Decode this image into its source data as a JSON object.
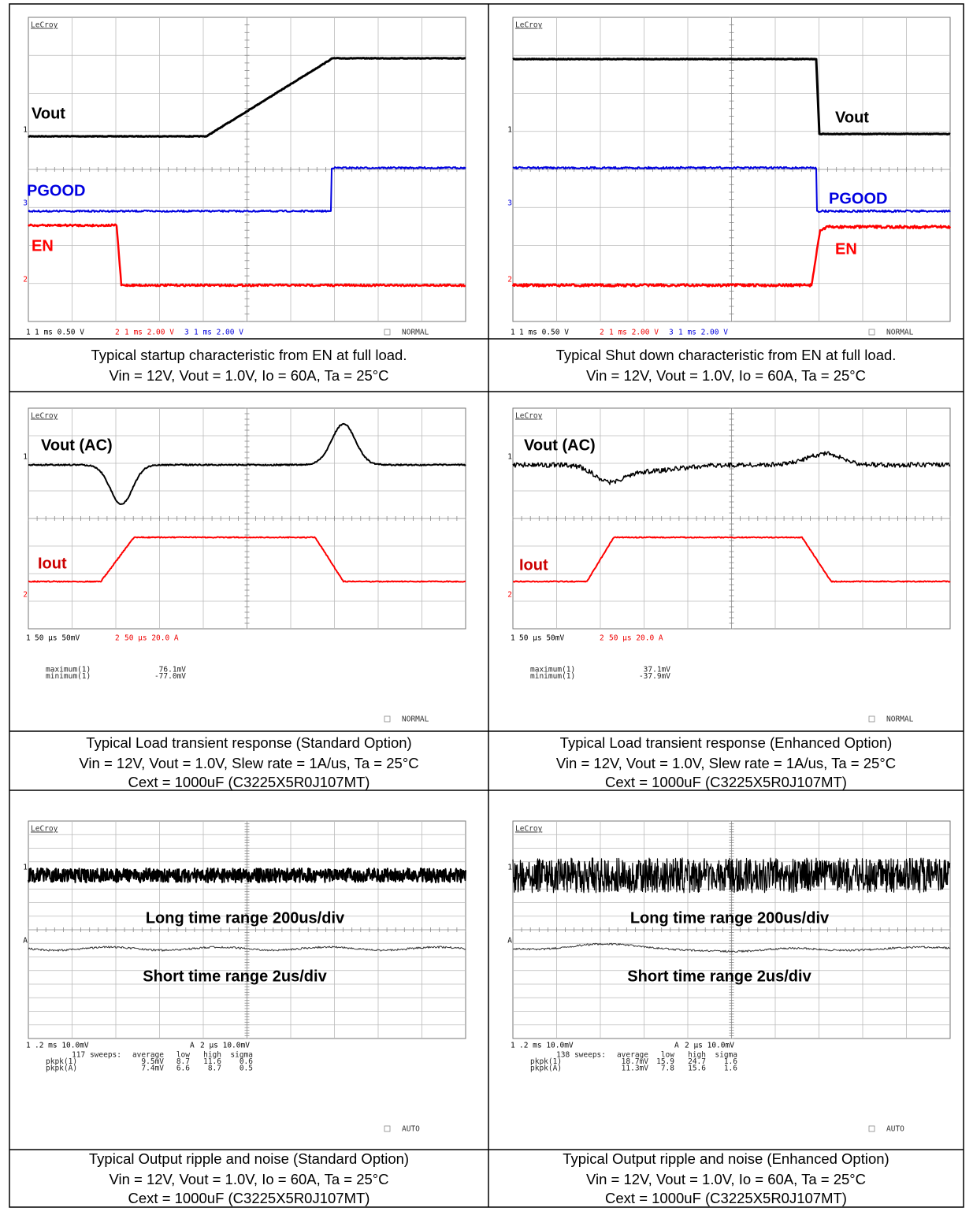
{
  "panels": [
    {
      "logo": "LeCroy",
      "labels": [
        "Vout",
        "PGOOD",
        "EN"
      ],
      "channel_markers": [
        "1",
        "3",
        "2"
      ],
      "status": [
        "1",
        "1 ms 0.50 V",
        "2",
        "1 ms 2.00 V",
        "3",
        "1 ms 2.00 V"
      ],
      "mode": "NORMAL",
      "caption": [
        "Typical startup characteristic from EN at full load.",
        "Vin = 12V, Vout = 1.0V, Io = 60A, Ta = 25°C"
      ]
    },
    {
      "logo": "LeCroy",
      "labels": [
        "Vout",
        "PGOOD",
        "EN"
      ],
      "channel_markers": [
        "1",
        "3",
        "2"
      ],
      "status": [
        "1",
        "1 ms 0.50 V",
        "2",
        "1 ms 2.00 V",
        "3",
        "1 ms 2.00 V"
      ],
      "mode": "NORMAL",
      "caption": [
        "Typical Shut down characteristic from EN at full load.",
        "Vin = 12V, Vout = 1.0V, Io = 60A, Ta = 25°C"
      ]
    },
    {
      "logo": "LeCroy",
      "labels": [
        "Vout (AC)",
        "Iout"
      ],
      "channel_markers": [
        "1",
        "2"
      ],
      "status": [
        "1",
        "50 µs 50mV",
        "2",
        "50 µs 20.0 A"
      ],
      "mode": "NORMAL",
      "measurements": [
        [
          "maximum(1)",
          "76.1mV"
        ],
        [
          "minimum(1)",
          "-77.0mV"
        ]
      ],
      "caption": [
        "Typical Load transient response (Standard Option)",
        "Vin = 12V, Vout = 1.0V, Slew rate = 1A/us, Ta = 25°C",
        "Cext = 1000uF (C3225X5R0J107MT)"
      ]
    },
    {
      "logo": "LeCroy",
      "labels": [
        "Vout (AC)",
        "Iout"
      ],
      "channel_markers": [
        "1",
        "2"
      ],
      "status": [
        "1",
        "50 µs 50mV",
        "2",
        "50 µs 20.0 A"
      ],
      "mode": "NORMAL",
      "measurements": [
        [
          "maximum(1)",
          "37.1mV"
        ],
        [
          "minimum(1)",
          "-37.9mV"
        ]
      ],
      "caption": [
        "Typical Load transient response (Enhanced Option)",
        "Vin = 12V, Vout = 1.0V, Slew rate = 1A/us, Ta = 25°C",
        "Cext = 1000uF (C3225X5R0J107MT)"
      ]
    },
    {
      "logo": "LeCroy",
      "labels": [
        "Long time range 200us/div",
        "Short time range 2us/div"
      ],
      "channel_markers": [
        "1",
        "A"
      ],
      "status": [
        "1",
        ".2 ms 10.0mV",
        "A",
        "2 µs 10.0mV"
      ],
      "mode": "AUTO",
      "measurements": [
        [
          "117 sweeps:",
          "average",
          "low",
          "high",
          "sigma"
        ],
        [
          "pkpk(1)",
          "9.5mV",
          "8.7",
          "11.6",
          "0.6"
        ],
        [
          "pkpk(A)",
          "7.4mV",
          "6.6",
          "8.7",
          "0.5"
        ]
      ],
      "caption": [
        "Typical Output ripple and noise (Standard Option)",
        "Vin = 12V, Vout = 1.0V, Io = 60A, Ta = 25°C",
        "Cext = 1000uF (C3225X5R0J107MT)"
      ]
    },
    {
      "logo": "LeCroy",
      "labels": [
        "Long time range 200us/div",
        "Short time range 2us/div"
      ],
      "channel_markers": [
        "1",
        "A"
      ],
      "status": [
        "1",
        ".2 ms 10.0mV",
        "A",
        "2 µs 10.0mV"
      ],
      "mode": "AUTO",
      "measurements": [
        [
          "138 sweeps:",
          "average",
          "low",
          "high",
          "sigma"
        ],
        [
          "pkpk(1)",
          "18.7mV",
          "15.9",
          "24.7",
          "1.6"
        ],
        [
          "pkpk(A)",
          "11.3mV",
          "7.8",
          "15.6",
          "1.6"
        ]
      ],
      "caption": [
        "Typical Output ripple and noise (Enhanced Option)",
        "Vin = 12V, Vout = 1.0V, Io = 60A, Ta = 25°C",
        "Cext = 1000uF (C3225X5R0J107MT)"
      ]
    }
  ]
}
